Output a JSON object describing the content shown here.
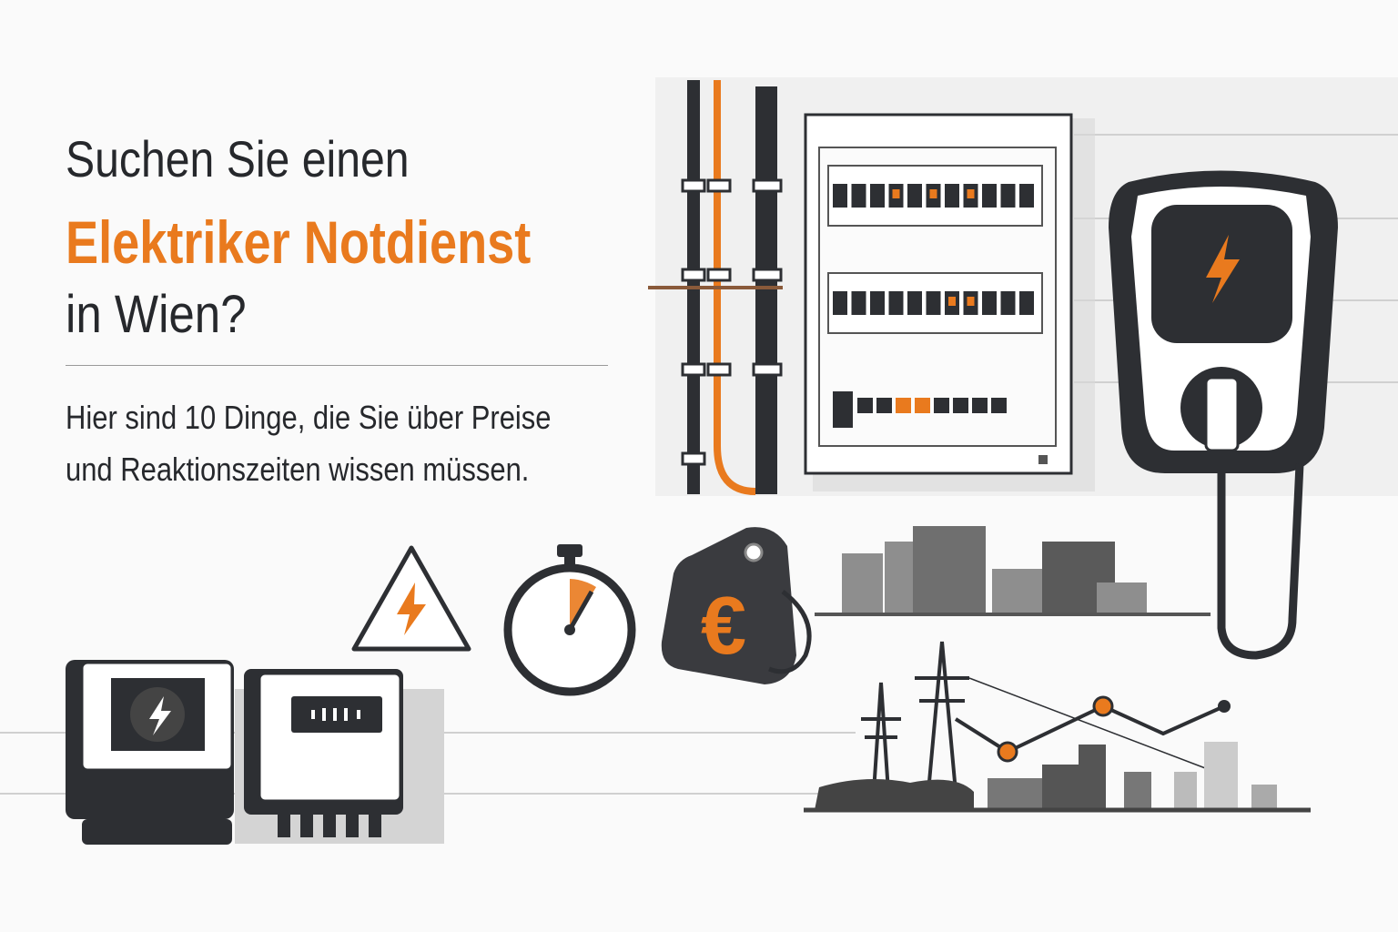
{
  "headline": {
    "line1": "Suchen Sie einen",
    "line2": "Elektriker Notdienst",
    "line3": "in Wien?"
  },
  "subtitle": {
    "line1": "Hier sind 10 Dinge, die Sie über Preise",
    "line2": "und Reaktionszeiten wissen müssen."
  },
  "colors": {
    "accent": "#e97a1e",
    "dark": "#26282c",
    "gray": "#8c8c8c",
    "background": "#fafafa"
  },
  "icons": [
    "fuse-box-icon",
    "wall-charger-icon",
    "warning-lightning-icon",
    "stopwatch-icon",
    "euro-price-tag-icon",
    "electric-meter-icon",
    "power-pylon-icon",
    "city-skyline-icon",
    "cable-conduit-icon"
  ]
}
